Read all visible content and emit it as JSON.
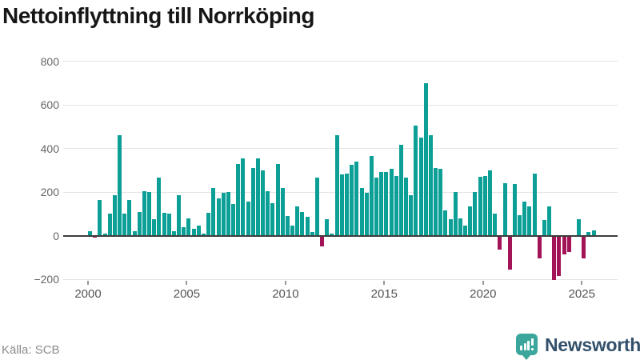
{
  "title": "Nettoinflyttning till Norrköping",
  "source": "Källa: SCB",
  "logo": {
    "text": "Newsworthy"
  },
  "colors": {
    "positive": "#0b9f96",
    "negative": "#a31357",
    "grid": "#e4e4e4",
    "zero_line": "#3d3d3d",
    "axis_text": "#666666"
  },
  "chart_data": {
    "type": "bar",
    "title": "Nettoinflyttning till Norrköping",
    "xlabel": "",
    "ylabel": "",
    "frequency": "quarterly",
    "start_period": "2000Q1",
    "end_period": "2025Q3",
    "ylim": [
      -250,
      820
    ],
    "grid": "horizontal",
    "y_ticks": [
      {
        "v": 800,
        "label": "800"
      },
      {
        "v": 600,
        "label": "600"
      },
      {
        "v": 400,
        "label": "400"
      },
      {
        "v": 200,
        "label": "200"
      },
      {
        "v": 0,
        "label": "0"
      },
      {
        "v": -200,
        "label": "−200"
      }
    ],
    "x_ticks": [
      {
        "year": 2000,
        "label": "2000"
      },
      {
        "year": 2005,
        "label": "2005"
      },
      {
        "year": 2010,
        "label": "2010"
      },
      {
        "year": 2015,
        "label": "2015"
      },
      {
        "year": 2020,
        "label": "2020"
      },
      {
        "year": 2025,
        "label": "2025"
      }
    ],
    "values": [
      20,
      -10,
      165,
      10,
      100,
      185,
      460,
      100,
      165,
      20,
      110,
      205,
      200,
      75,
      265,
      105,
      100,
      20,
      185,
      40,
      80,
      30,
      45,
      10,
      105,
      220,
      170,
      195,
      200,
      145,
      330,
      355,
      155,
      310,
      355,
      300,
      205,
      150,
      330,
      220,
      90,
      45,
      135,
      110,
      85,
      15,
      265,
      -50,
      75,
      10,
      460,
      280,
      285,
      325,
      340,
      220,
      195,
      365,
      265,
      290,
      290,
      305,
      275,
      415,
      265,
      185,
      505,
      450,
      700,
      460,
      310,
      305,
      115,
      75,
      200,
      80,
      45,
      135,
      200,
      270,
      275,
      300,
      100,
      -65,
      240,
      -155,
      235,
      95,
      155,
      135,
      285,
      -105,
      70,
      135,
      -205,
      -185,
      -85,
      -75,
      0,
      75,
      -105,
      15,
      25
    ]
  }
}
